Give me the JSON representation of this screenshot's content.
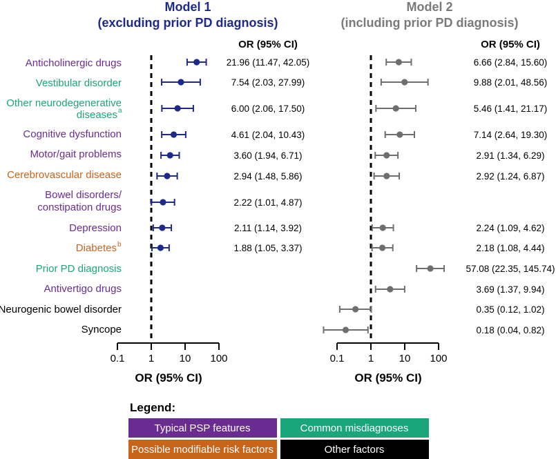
{
  "categories_colors": {
    "typical": "#6b2c91",
    "misdiag": "#1aa67a",
    "risk": "#c8651b",
    "other": "#000000"
  },
  "chart_data": {
    "type": "forest",
    "ci_header": "OR (95% CI)",
    "xlabel": "OR (95% CI)",
    "x_ticks": [
      "0.1",
      "1",
      "10",
      "100"
    ],
    "x_scale": "log",
    "xlim": [
      0.1,
      100
    ],
    "reference_line": 1,
    "models": [
      {
        "title_line1": "Model 1",
        "title_line2": "(excluding prior PD diagnosis)",
        "color": "#1d2a8a",
        "rows": [
          {
            "factor": "Anticholinergic drugs",
            "or": 21.96,
            "lo": 11.47,
            "hi": 42.05,
            "ci_text": "21.96 (11.47, 42.05)"
          },
          {
            "factor": "Vestibular disorder",
            "or": 7.54,
            "lo": 2.03,
            "hi": 27.99,
            "ci_text": "7.54 (2.03, 27.99)"
          },
          {
            "factor": "Other neurodegenerative diseases",
            "or": 6.0,
            "lo": 2.06,
            "hi": 17.5,
            "ci_text": "6.00 (2.06, 17.50)"
          },
          {
            "factor": "Cognitive dysfunction",
            "or": 4.61,
            "lo": 2.04,
            "hi": 10.43,
            "ci_text": "4.61 (2.04, 10.43)"
          },
          {
            "factor": "Motor/gait problems",
            "or": 3.6,
            "lo": 1.94,
            "hi": 6.71,
            "ci_text": "3.60 (1.94, 6.71)"
          },
          {
            "factor": "Cerebrovascular disease",
            "or": 2.94,
            "lo": 1.48,
            "hi": 5.86,
            "ci_text": "2.94 (1.48, 5.86)"
          },
          {
            "factor": "Bowel disorders/ constipation drugs",
            "or": 2.22,
            "lo": 1.01,
            "hi": 4.87,
            "ci_text": "2.22 (1.01, 4.87)"
          },
          {
            "factor": "Depression",
            "or": 2.11,
            "lo": 1.14,
            "hi": 3.92,
            "ci_text": "2.11 (1.14, 3.92)"
          },
          {
            "factor": "Diabetes",
            "or": 1.88,
            "lo": 1.05,
            "hi": 3.37,
            "ci_text": "1.88 (1.05, 3.37)"
          }
        ]
      },
      {
        "title_line1": "Model 2",
        "title_line2": "(including prior PD diagnosis)",
        "color": "#6e6e6e",
        "rows": [
          {
            "factor": "Anticholinergic drugs",
            "or": 6.66,
            "lo": 2.84,
            "hi": 15.6,
            "ci_text": "6.66 (2.84, 15.60)"
          },
          {
            "factor": "Vestibular disorder",
            "or": 9.88,
            "lo": 2.01,
            "hi": 48.56,
            "ci_text": "9.88 (2.01, 48.56)"
          },
          {
            "factor": "Other neurodegenerative diseases",
            "or": 5.46,
            "lo": 1.41,
            "hi": 21.17,
            "ci_text": "5.46 (1.41, 21.17)"
          },
          {
            "factor": "Cognitive dysfunction",
            "or": 7.14,
            "lo": 2.64,
            "hi": 19.3,
            "ci_text": "7.14 (2.64, 19.30)"
          },
          {
            "factor": "Motor/gait problems",
            "or": 2.91,
            "lo": 1.34,
            "hi": 6.29,
            "ci_text": "2.91 (1.34, 6.29)"
          },
          {
            "factor": "Cerebrovascular disease",
            "or": 2.92,
            "lo": 1.24,
            "hi": 6.87,
            "ci_text": "2.92 (1.24, 6.87)"
          },
          {
            "factor": "Depression",
            "or": 2.24,
            "lo": 1.09,
            "hi": 4.62,
            "ci_text": "2.24 (1.09, 4.62)"
          },
          {
            "factor": "Diabetes",
            "or": 2.18,
            "lo": 1.08,
            "hi": 4.44,
            "ci_text": "2.18 (1.08, 4.44)"
          },
          {
            "factor": "Prior PD diagnosis",
            "or": 57.08,
            "lo": 22.35,
            "hi": 145.74,
            "ci_text": "57.08 (22.35, 145.74)"
          },
          {
            "factor": "Antivertigo drugs",
            "or": 3.69,
            "lo": 1.37,
            "hi": 9.94,
            "ci_text": "3.69 (1.37, 9.94)"
          },
          {
            "factor": "Neurogenic bowel disorder",
            "or": 0.35,
            "lo": 0.12,
            "hi": 1.02,
            "ci_text": "0.35 (0.12, 1.02)"
          },
          {
            "factor": "Syncope",
            "or": 0.18,
            "lo": 0.04,
            "hi": 0.82,
            "ci_text": "0.18 (0.04, 0.82)"
          }
        ]
      }
    ]
  },
  "labels": {
    "anticholinergic": "Anticholinergic drugs",
    "vestibular": "Vestibular disorder",
    "other_neuro_1": "Other neurodegenerative",
    "other_neuro_2": "diseases",
    "other_neuro_sup": "a",
    "cognitive": "Cognitive dysfunction",
    "motor": "Motor/gait problems",
    "cerebro": "Cerebrovascular disease",
    "bowel_1": "Bowel disorders/",
    "bowel_2": "constipation drugs",
    "depression": "Depression",
    "diabetes": "Diabetes",
    "diabetes_sup": "b",
    "prior_pd": "Prior PD diagnosis",
    "antivertigo": "Antivertigo drugs",
    "neurogenic": "Neurogenic bowel disorder",
    "syncope": "Syncope"
  },
  "legend": {
    "title": "Legend:",
    "items": [
      {
        "label": "Typical PSP features",
        "color": "#6b2c91"
      },
      {
        "label": "Common misdiagnoses",
        "color": "#1aa67a"
      },
      {
        "label": "Possible modifiable risk factors",
        "color": "#c8651b"
      },
      {
        "label": "Other factors",
        "color": "#000000"
      }
    ]
  }
}
